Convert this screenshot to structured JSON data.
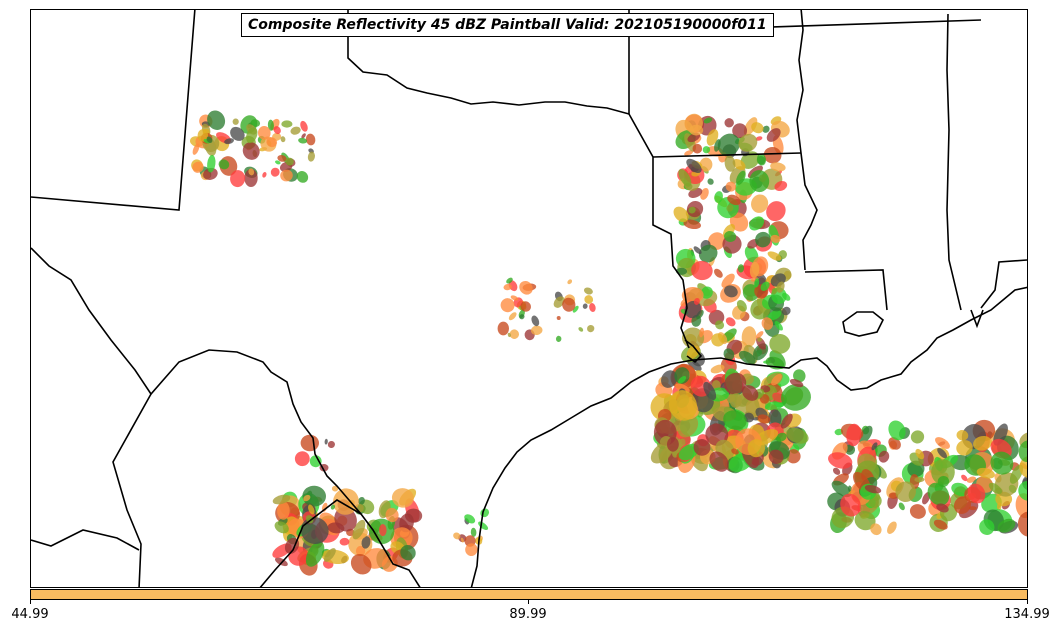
{
  "title": "Composite Reflectivity 45 dBZ Paintball Valid: 202105190000f011",
  "colorbar": {
    "color": "#f9bb60",
    "ticks": [
      "44.99",
      "89.99",
      "134.99"
    ]
  },
  "member_colors": [
    "#ff3b3b",
    "#ff8a3d",
    "#f4a742",
    "#2fd12f",
    "#33aa22",
    "#7ea82a",
    "#a59c35",
    "#4b4b4b",
    "#9c3434",
    "#2e7d32",
    "#c8491e",
    "#e0b020"
  ]
}
